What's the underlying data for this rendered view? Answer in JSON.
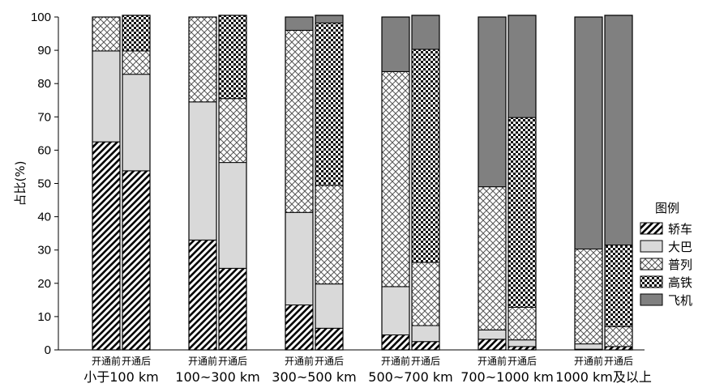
{
  "chart_data": {
    "type": "bar",
    "stacked": true,
    "ylabel": "占比(%)",
    "ylim": [
      0,
      100
    ],
    "yticks": [
      0,
      10,
      20,
      30,
      40,
      50,
      60,
      70,
      80,
      90,
      100
    ],
    "groups": [
      "小于100 km",
      "100~300 km",
      "300~500 km",
      "500~700 km",
      "700~1000 km",
      "1000 km及以上"
    ],
    "bar_labels": [
      "开通前",
      "开通后"
    ],
    "legend_title": "图例",
    "legend_position": "right",
    "series": [
      {
        "name": "轿车",
        "pattern": "diagonal-hatch",
        "values": [
          [
            62.5,
            53.8
          ],
          [
            33.0,
            24.5
          ],
          [
            13.5,
            6.5
          ],
          [
            4.5,
            2.5
          ],
          [
            3.2,
            1.0
          ],
          [
            0.2,
            1.0
          ]
        ]
      },
      {
        "name": "大巴",
        "pattern": "light-gray",
        "values": [
          [
            27.3,
            29.0
          ],
          [
            41.5,
            31.8
          ],
          [
            27.8,
            13.3
          ],
          [
            14.5,
            4.8
          ],
          [
            2.8,
            2.0
          ],
          [
            1.6,
            0.0
          ]
        ]
      },
      {
        "name": "普列",
        "pattern": "crosshatch",
        "values": [
          [
            10.2,
            7.0
          ],
          [
            25.5,
            19.2
          ],
          [
            54.7,
            29.6
          ],
          [
            64.6,
            19.0
          ],
          [
            43.0,
            9.8
          ],
          [
            28.5,
            6.0
          ]
        ]
      },
      {
        "name": "高铁",
        "pattern": "checker",
        "values": [
          [
            0.0,
            10.7
          ],
          [
            0.0,
            25.0
          ],
          [
            0.0,
            48.8
          ],
          [
            0.0,
            64.0
          ],
          [
            0.0,
            57.0
          ],
          [
            0.0,
            24.5
          ]
        ]
      },
      {
        "name": "飞机",
        "pattern": "dark-gray",
        "values": [
          [
            0.0,
            0.0
          ],
          [
            0.0,
            0.0
          ],
          [
            4.0,
            2.3
          ],
          [
            16.4,
            10.2
          ],
          [
            51.0,
            30.7
          ],
          [
            69.7,
            69.0
          ]
        ]
      }
    ]
  }
}
